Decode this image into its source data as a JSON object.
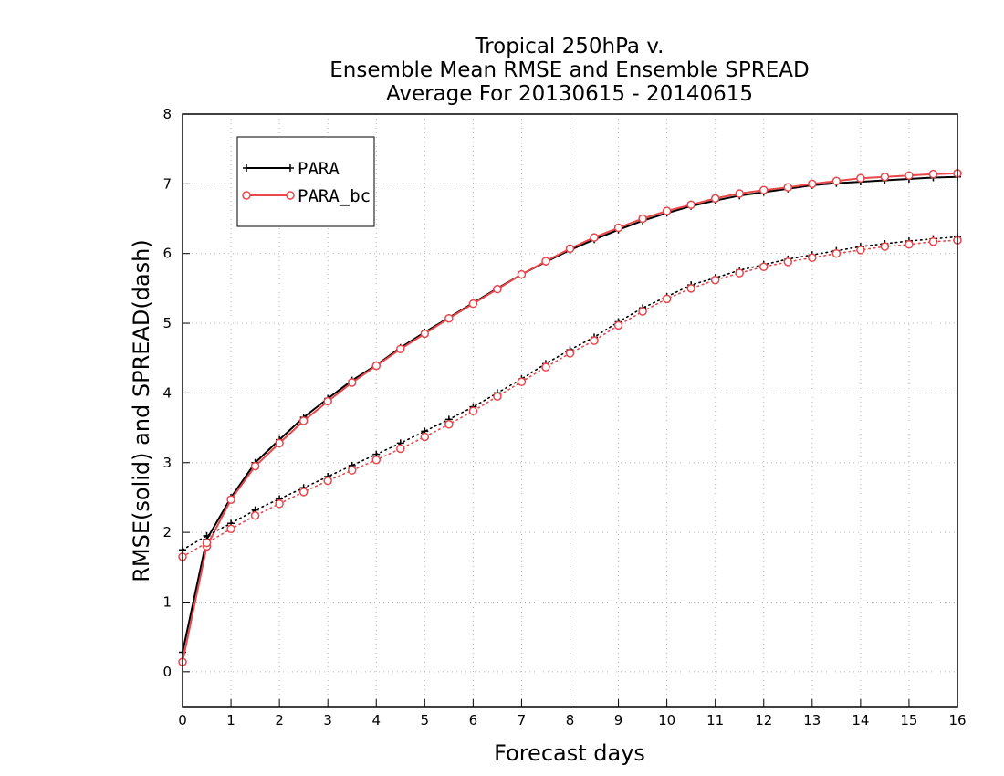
{
  "chart_data": {
    "type": "line",
    "title": [
      "Tropical 250hPa v.",
      "Ensemble Mean RMSE and Ensemble SPREAD",
      "Average For 20130615 - 20140615"
    ],
    "xlabel": "Forecast days",
    "ylabel": "RMSE(solid) and SPREAD(dash)",
    "xlim": [
      0,
      16
    ],
    "ylim": [
      -0.5,
      8
    ],
    "xticks": [
      0,
      1,
      2,
      3,
      4,
      5,
      6,
      7,
      8,
      9,
      10,
      11,
      12,
      13,
      14,
      15,
      16
    ],
    "yticks": [
      0,
      1,
      2,
      3,
      4,
      5,
      6,
      7,
      8
    ],
    "grid": true,
    "legend_position": "top-left",
    "x": [
      0,
      0.5,
      1,
      1.5,
      2,
      2.5,
      3,
      3.5,
      4,
      4.5,
      5,
      5.5,
      6,
      6.5,
      7,
      7.5,
      8,
      8.5,
      9,
      9.5,
      10,
      10.5,
      11,
      11.5,
      12,
      12.5,
      13,
      13.5,
      14,
      14.5,
      15,
      15.5,
      16
    ],
    "series": [
      {
        "name": "PARA",
        "metric": "RMSE",
        "style": "solid",
        "marker": "plus",
        "color": "#000000",
        "values": [
          0.28,
          1.9,
          2.5,
          3.0,
          3.33,
          3.65,
          3.92,
          4.18,
          4.4,
          4.65,
          4.87,
          5.08,
          5.29,
          5.5,
          5.7,
          5.88,
          6.05,
          6.2,
          6.34,
          6.47,
          6.58,
          6.68,
          6.76,
          6.83,
          6.88,
          6.93,
          6.98,
          7.01,
          7.03,
          7.05,
          7.07,
          7.09,
          7.1
        ]
      },
      {
        "name": "PARA_bc",
        "metric": "RMSE",
        "style": "solid",
        "marker": "circle",
        "color": "#e8474c",
        "values": [
          0.14,
          1.8,
          2.47,
          2.95,
          3.28,
          3.6,
          3.88,
          4.15,
          4.39,
          4.63,
          4.85,
          5.07,
          5.28,
          5.49,
          5.7,
          5.89,
          6.07,
          6.23,
          6.37,
          6.5,
          6.61,
          6.7,
          6.79,
          6.86,
          6.91,
          6.95,
          7.0,
          7.04,
          7.08,
          7.1,
          7.12,
          7.14,
          7.15
        ]
      },
      {
        "name": "PARA",
        "metric": "SPREAD",
        "style": "dotted",
        "marker": "plus",
        "color": "#000000",
        "values": [
          1.75,
          1.95,
          2.13,
          2.32,
          2.48,
          2.64,
          2.8,
          2.96,
          3.12,
          3.28,
          3.45,
          3.62,
          3.8,
          4.0,
          4.2,
          4.42,
          4.62,
          4.8,
          5.02,
          5.22,
          5.38,
          5.55,
          5.65,
          5.76,
          5.84,
          5.92,
          5.98,
          6.04,
          6.1,
          6.14,
          6.18,
          6.21,
          6.24
        ]
      },
      {
        "name": "PARA_bc",
        "metric": "SPREAD",
        "style": "dotted",
        "marker": "circle",
        "color": "#e8474c",
        "values": [
          1.65,
          1.85,
          2.05,
          2.24,
          2.41,
          2.58,
          2.74,
          2.89,
          3.04,
          3.2,
          3.37,
          3.55,
          3.74,
          3.95,
          4.16,
          4.37,
          4.57,
          4.75,
          4.97,
          5.17,
          5.35,
          5.5,
          5.62,
          5.72,
          5.81,
          5.88,
          5.94,
          6.0,
          6.05,
          6.1,
          6.13,
          6.17,
          6.19
        ]
      }
    ]
  }
}
